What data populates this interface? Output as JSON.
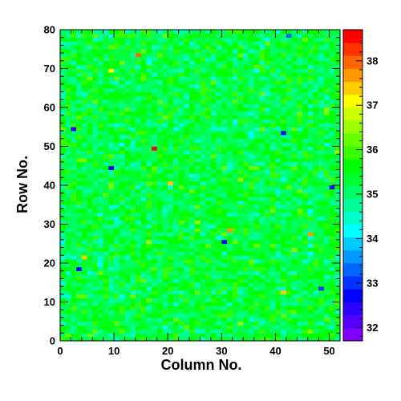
{
  "chart_data": {
    "type": "heatmap",
    "title": "",
    "xlabel": "Column No.",
    "ylabel": "Row No.",
    "xlim": [
      0,
      52
    ],
    "ylim": [
      0,
      80
    ],
    "n_columns": 52,
    "n_rows": 80,
    "x_major_ticks": [
      0,
      10,
      20,
      30,
      40,
      50
    ],
    "y_major_ticks": [
      0,
      10,
      20,
      30,
      40,
      50,
      60,
      70,
      80
    ],
    "z_range": [
      31.7,
      38.7
    ],
    "colorbar_ticks": [
      32,
      33,
      34,
      35,
      36,
      37,
      38
    ],
    "colorbar_palette": [
      "#7f00ff",
      "#5500ff",
      "#2a00ff",
      "#0000ff",
      "#0033ff",
      "#0066ff",
      "#0099ff",
      "#00ccff",
      "#00ffff",
      "#00ffcc",
      "#00ff99",
      "#00ff66",
      "#00ff33",
      "#00ff00",
      "#33ff00",
      "#66ff00",
      "#99ff00",
      "#ccff00",
      "#ffff00",
      "#ffcc00",
      "#ff9900",
      "#ff6600",
      "#ff3300",
      "#ff0000"
    ],
    "value_distribution": {
      "typical_range": [
        34.2,
        36.2
      ],
      "mode": 35.3,
      "notes": "Mostly green/cyan cells around 35; sparse blue (~32.5-33.5) and yellow/orange (~36.5-38) outliers scattered uniformly"
    },
    "highlighted_cells": [
      {
        "column": 17,
        "row": 49,
        "value": 38.5
      },
      {
        "column": 14,
        "row": 73,
        "value": 37.9
      },
      {
        "column": 46,
        "row": 27,
        "value": 37.6
      },
      {
        "column": 31,
        "row": 28,
        "value": 37.7
      },
      {
        "column": 41,
        "row": 12,
        "value": 37.5
      },
      {
        "column": 4,
        "row": 21,
        "value": 37.4
      },
      {
        "column": 20,
        "row": 40,
        "value": 37.3
      },
      {
        "column": 9,
        "row": 69,
        "value": 37.2
      },
      {
        "column": 30,
        "row": 25,
        "value": 32.6
      },
      {
        "column": 2,
        "row": 54,
        "value": 32.4
      },
      {
        "column": 50,
        "row": 39,
        "value": 32.5
      },
      {
        "column": 3,
        "row": 18,
        "value": 32.6
      },
      {
        "column": 9,
        "row": 44,
        "value": 32.8
      },
      {
        "column": 42,
        "row": 78,
        "value": 33.2
      },
      {
        "column": 41,
        "row": 53,
        "value": 32.7
      },
      {
        "column": 48,
        "row": 13,
        "value": 33.1
      }
    ]
  }
}
